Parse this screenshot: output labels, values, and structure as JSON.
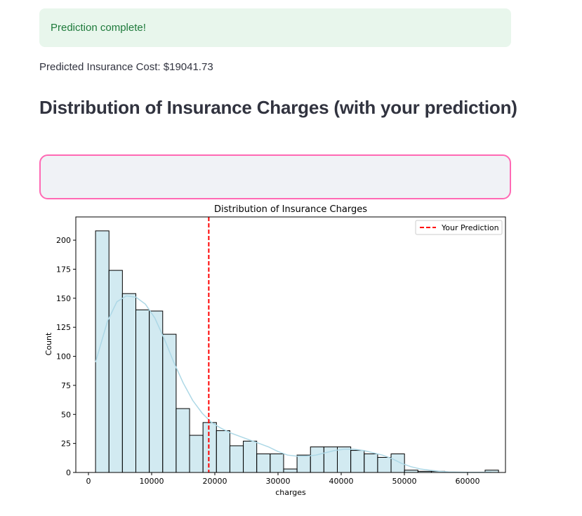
{
  "alert": {
    "text": "Prediction complete!"
  },
  "prediction": {
    "text": "Predicted Insurance Cost: $19041.73"
  },
  "heading": {
    "text": "Distribution of Insurance Charges (with your prediction)"
  },
  "chart_data": {
    "type": "bar",
    "title": "Distribution of Insurance Charges",
    "xlabel": "charges",
    "ylabel": "Count",
    "xlim": [
      -2000,
      66000
    ],
    "ylim": [
      0,
      220
    ],
    "xticks": [
      0,
      10000,
      20000,
      30000,
      40000,
      50000,
      60000
    ],
    "yticks": [
      0,
      25,
      50,
      75,
      100,
      125,
      150,
      175,
      200
    ],
    "grid": false,
    "bin_start": 1121,
    "bin_width": 2126,
    "counts": [
      208,
      174,
      154,
      140,
      139,
      119,
      55,
      32,
      43,
      36,
      23,
      27,
      16,
      16,
      3,
      15,
      22,
      22,
      22,
      19,
      16,
      13,
      16,
      2,
      1,
      1,
      0,
      0,
      0,
      2
    ],
    "bar_color": "#add8e6",
    "kde": {
      "color": "#add8e6",
      "x": [
        1121,
        3000,
        4500,
        6000,
        7500,
        9000,
        10500,
        12000,
        13500,
        15000,
        16500,
        18000,
        19500,
        21000,
        22500,
        24000,
        25500,
        27000,
        28500,
        30000,
        31500,
        33000,
        34500,
        36000,
        37500,
        39000,
        40500,
        42000,
        43500,
        45000,
        46500,
        48000,
        49500,
        51000,
        52500,
        54000,
        55500,
        57000,
        58500,
        60000,
        61500,
        63770
      ],
      "y": [
        95,
        130,
        147,
        152,
        151,
        145,
        133,
        115,
        95,
        77,
        62,
        51,
        43,
        38,
        34,
        31,
        28,
        25,
        22,
        18,
        15,
        14,
        14,
        15,
        17,
        19,
        20,
        20,
        19,
        17,
        15,
        12,
        8,
        5,
        3,
        2,
        1,
        0.5,
        0.3,
        0.2,
        0.2,
        0.3
      ]
    },
    "prediction_line": {
      "x": 19041.73,
      "label": "Your Prediction",
      "color": "#ff0000"
    },
    "legend_position": "upper-right"
  }
}
